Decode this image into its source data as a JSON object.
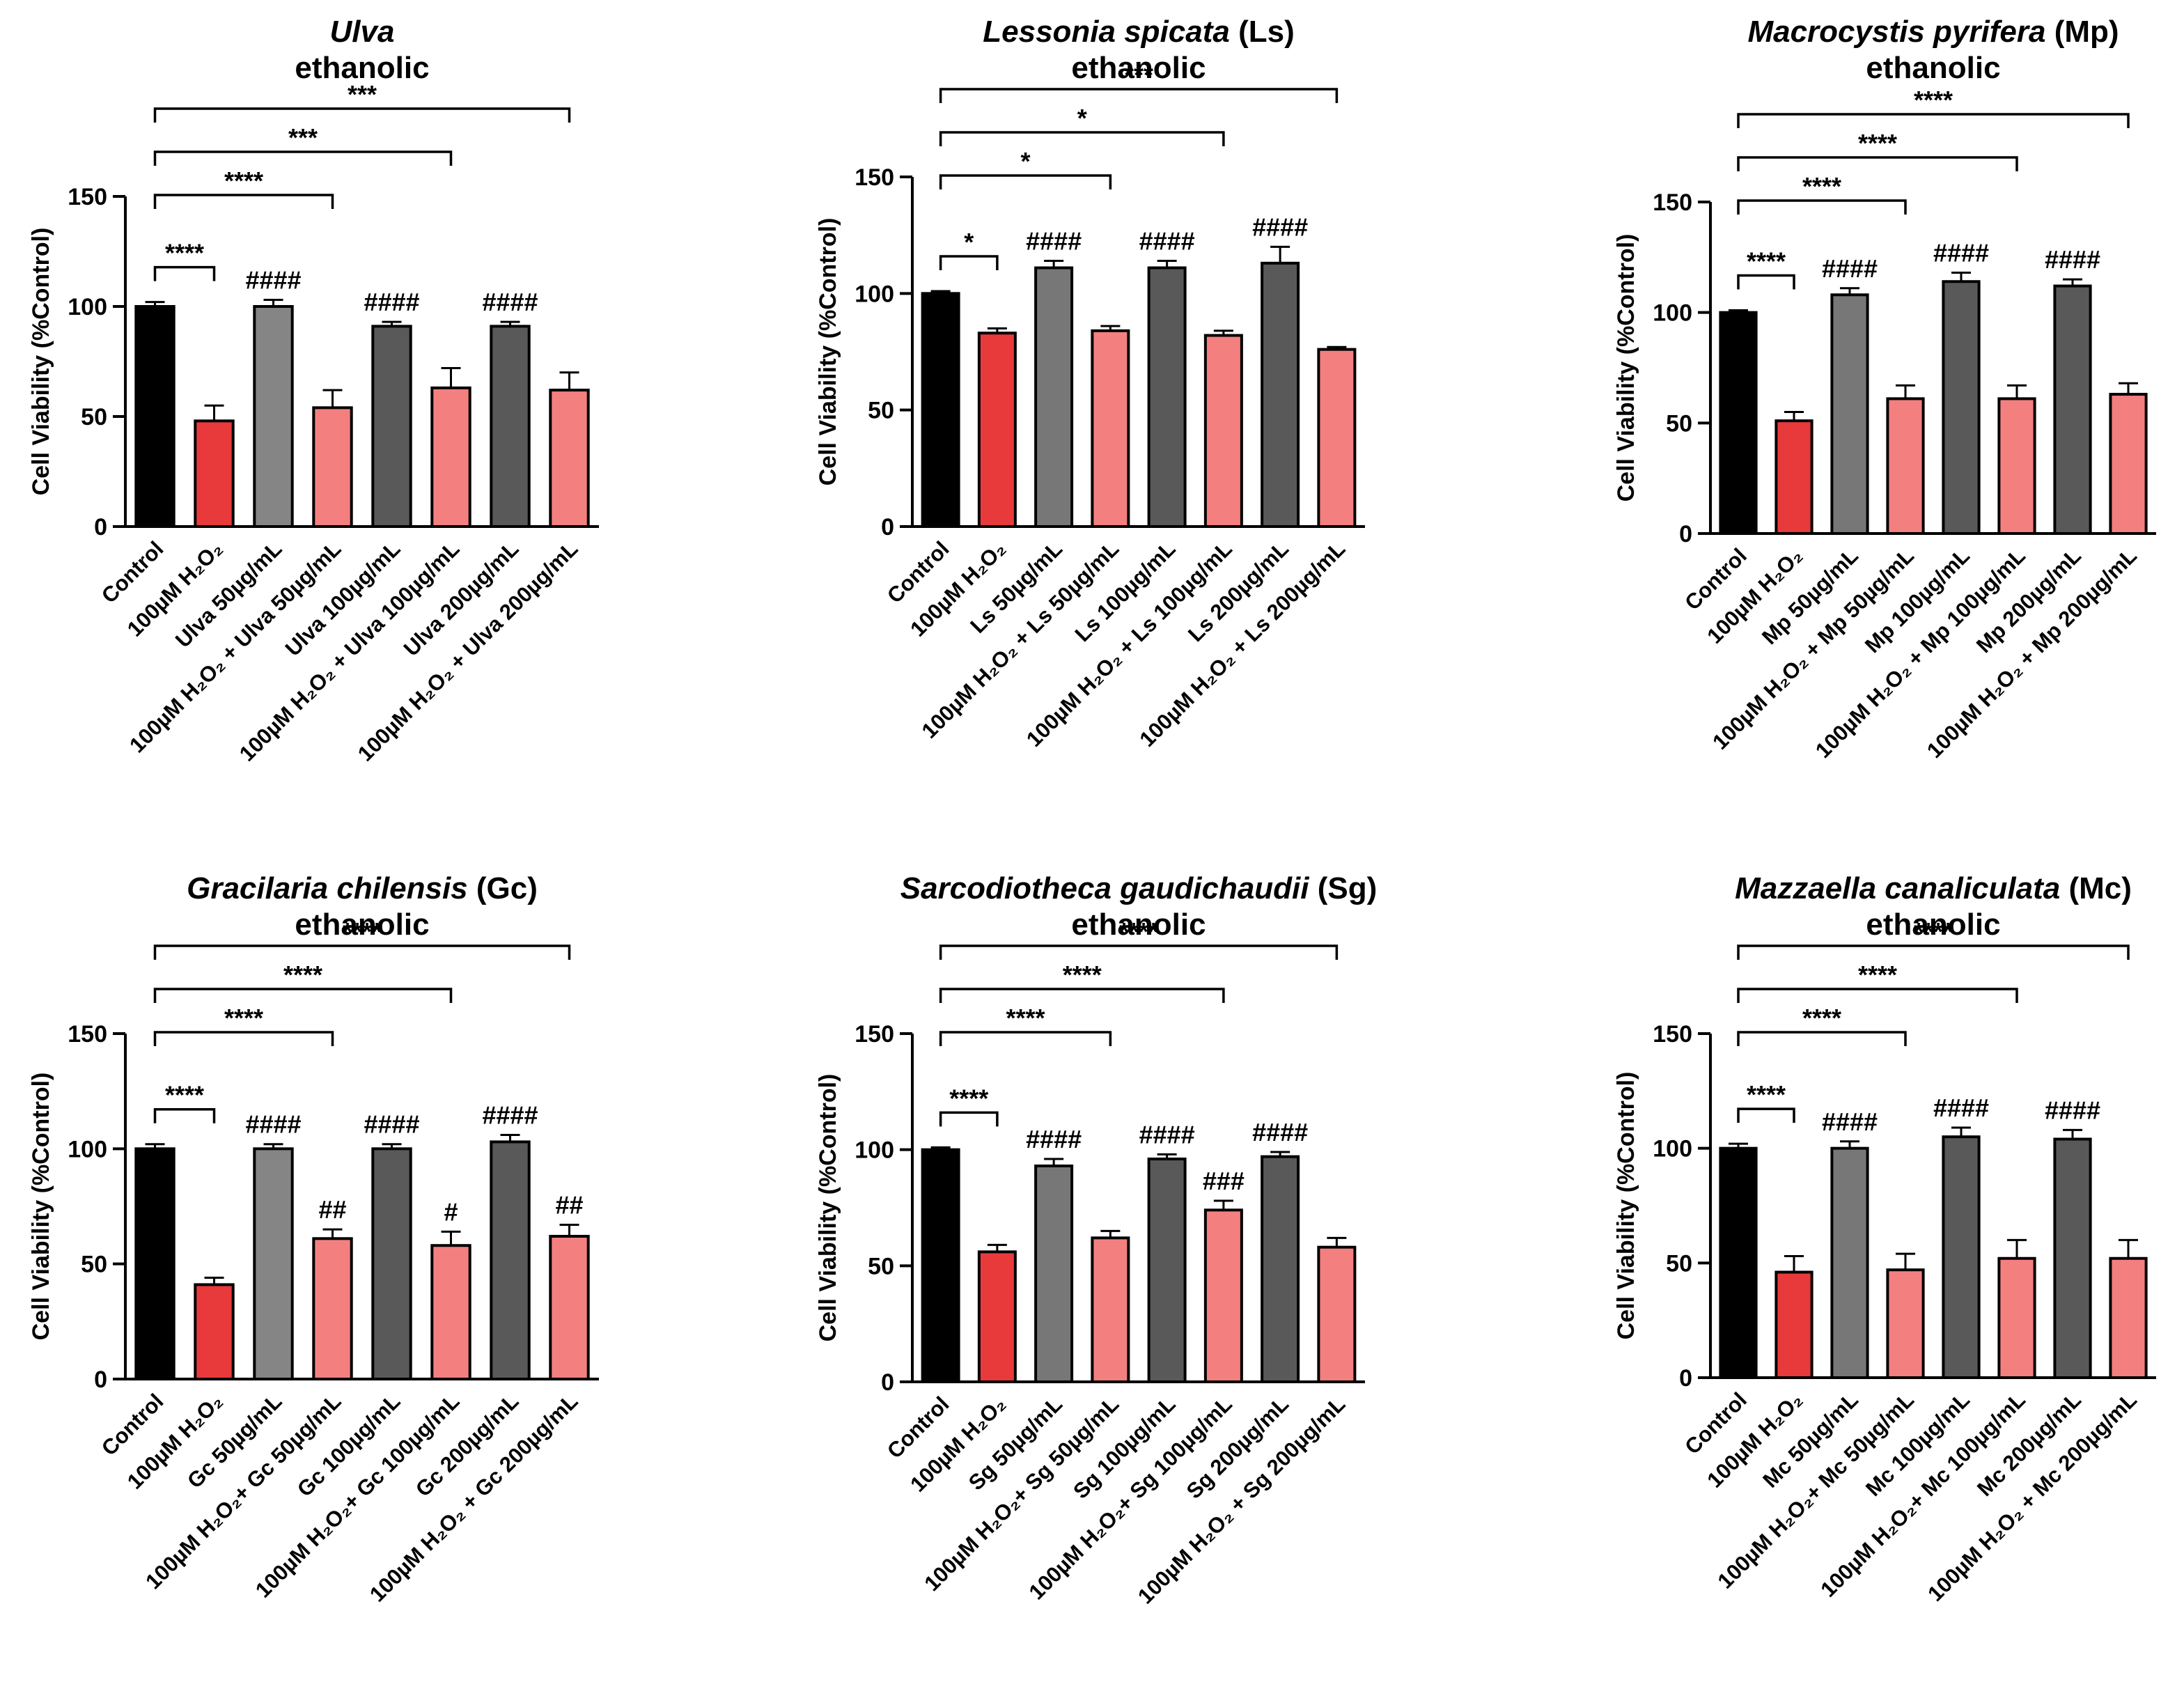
{
  "chart_data": [
    {
      "type": "bar",
      "title_italic": "Ulva",
      "subtitle": "ethanolic",
      "ylabel": "Cell Viability (%Control)",
      "categories": [
        "Control",
        "100µM H₂O₂",
        "Ulva 50µg/mL",
        "100µM H₂O₂ + Ulva 50µg/mL",
        "Ulva 100µg/mL",
        "100µM H₂O₂ + Ulva 100µg/mL",
        "Ulva 200µg/mL",
        "100µM H₂O₂ + Ulva 200µg/mL"
      ],
      "values": [
        100,
        48,
        100,
        54,
        91,
        63,
        91,
        62
      ],
      "errors": [
        2,
        7,
        3,
        8,
        2,
        9,
        2,
        8
      ],
      "colors": [
        "#000000",
        "#e8393b",
        "#858585",
        "#f47f7f",
        "#595959",
        "#f47f7f",
        "#595959",
        "#f47f7f"
      ],
      "bar_labels": [
        null,
        null,
        "####",
        null,
        "####",
        null,
        "####",
        null
      ],
      "brackets": [
        {
          "label": "****",
          "from": "Control",
          "to": "100µM H₂O₂"
        },
        {
          "label": "****",
          "from": "Control",
          "to": "100µM H₂O₂ + Ulva 50µg/mL"
        },
        {
          "label": "***",
          "from": "Control",
          "to": "100µM H₂O₂ + Ulva 100µg/mL"
        },
        {
          "label": "***",
          "from": "Control",
          "to": "100µM H₂O₂ + Ulva 200µg/mL"
        }
      ],
      "ylim": [
        0,
        150
      ],
      "yticks": [
        0,
        50,
        100,
        150
      ]
    },
    {
      "type": "bar",
      "title_italic": "Lessonia spicata",
      "title_plain": "(Ls)",
      "subtitle": "ethanolic",
      "ylabel": "Cell Viability (%Control)",
      "categories": [
        "Control",
        "100µM H₂O₂",
        "Ls 50µg/mL",
        "100µM H₂O₂ + Ls 50µg/mL",
        "Ls 100µg/mL",
        "100µM H₂O₂ + Ls 100µg/mL",
        "Ls 200µg/mL",
        "100µM H₂O₂ + Ls 200µg/mL"
      ],
      "values": [
        100,
        83,
        111,
        84,
        111,
        82,
        113,
        76
      ],
      "errors": [
        1,
        2,
        3,
        2,
        3,
        2,
        7,
        1
      ],
      "colors": [
        "#000000",
        "#e8393b",
        "#777777",
        "#f47f7f",
        "#595959",
        "#f47f7f",
        "#595959",
        "#f47f7f"
      ],
      "bar_labels": [
        null,
        null,
        "####",
        null,
        "####",
        null,
        "####",
        null
      ],
      "brackets": [
        {
          "label": "*",
          "from": "Control",
          "to": "100µM H₂O₂"
        },
        {
          "label": "*",
          "from": "Control",
          "to": "100µM H₂O₂ + Ls 50µg/mL"
        },
        {
          "label": "*",
          "from": "Control",
          "to": "100µM H₂O₂ + Ls 100µg/mL"
        },
        {
          "label": "***",
          "from": "Control",
          "to": "100µM H₂O₂ + Ls 200µg/mL"
        }
      ],
      "ylim": [
        0,
        150
      ],
      "yticks": [
        0,
        50,
        100,
        150
      ]
    },
    {
      "type": "bar",
      "title_italic": "Macrocystis pyrifera",
      "title_plain": "(Mp)",
      "subtitle": "ethanolic",
      "ylabel": "Cell Viability (%Control)",
      "categories": [
        "Control",
        "100µM H₂O₂",
        "Mp 50µg/mL",
        "100µM H₂O₂ + Mp 50µg/mL",
        "Mp 100µg/mL",
        "100µM H₂O₂ + Mp 100µg/mL",
        "Mp 200µg/mL",
        "100µM H₂O₂ + Mp 200µg/mL"
      ],
      "values": [
        100,
        51,
        108,
        61,
        114,
        61,
        112,
        63
      ],
      "errors": [
        1,
        4,
        3,
        6,
        4,
        6,
        3,
        5
      ],
      "colors": [
        "#000000",
        "#e8393b",
        "#777777",
        "#f47f7f",
        "#595959",
        "#f47f7f",
        "#595959",
        "#f47f7f"
      ],
      "bar_labels": [
        null,
        null,
        "####",
        null,
        "####",
        null,
        "####",
        null
      ],
      "brackets": [
        {
          "label": "****",
          "from": "Control",
          "to": "100µM H₂O₂"
        },
        {
          "label": "****",
          "from": "Control",
          "to": "100µM H₂O₂ + Mp 50µg/mL"
        },
        {
          "label": "****",
          "from": "Control",
          "to": "100µM H₂O₂ + Mp 100µg/mL"
        },
        {
          "label": "****",
          "from": "Control",
          "to": "100µM H₂O₂ + Mp 200µg/mL"
        }
      ],
      "ylim": [
        0,
        150
      ],
      "yticks": [
        0,
        50,
        100,
        150
      ]
    },
    {
      "type": "bar",
      "title_italic": "Gracilaria chilensis",
      "title_plain": "(Gc)",
      "subtitle": "ethanolic",
      "ylabel": "Cell Viability (%Control)",
      "categories": [
        "Control",
        "100µM H₂O₂",
        "Gc 50µg/mL",
        "100µM H₂O₂+ Gc 50µg/mL",
        "Gc 100µg/mL",
        "100µM H₂O₂+ Gc 100µg/mL",
        "Gc 200µg/mL",
        "100µM H₂O₂ + Gc 200µg/mL"
      ],
      "values": [
        100,
        41,
        100,
        61,
        100,
        58,
        103,
        62
      ],
      "errors": [
        2,
        3,
        2,
        4,
        2,
        6,
        3,
        5
      ],
      "colors": [
        "#000000",
        "#e8393b",
        "#858585",
        "#f47f7f",
        "#595959",
        "#f47f7f",
        "#595959",
        "#f47f7f"
      ],
      "bar_labels": [
        null,
        null,
        "####",
        "##",
        "####",
        "#",
        "####",
        "##"
      ],
      "brackets": [
        {
          "label": "****",
          "from": "Control",
          "to": "100µM H₂O₂"
        },
        {
          "label": "****",
          "from": "Control",
          "to": "100µM H₂O₂+ Gc 50µg/mL"
        },
        {
          "label": "****",
          "from": "Control",
          "to": "100µM H₂O₂+ Gc 100µg/mL"
        },
        {
          "label": "****",
          "from": "Control",
          "to": "100µM H₂O₂ + Gc 200µg/mL"
        }
      ],
      "ylim": [
        0,
        150
      ],
      "yticks": [
        0,
        50,
        100,
        150
      ]
    },
    {
      "type": "bar",
      "title_italic": "Sarcodiotheca gaudichaudii",
      "title_plain": "(Sg)",
      "subtitle": "ethanolic",
      "ylabel": "Cell Viability (%Control)",
      "categories": [
        "Control",
        "100µM H₂O₂",
        "Sg 50µg/mL",
        "100µM H₂O₂+ Sg 50µg/mL",
        "Sg 100µg/mL",
        "100µM H₂O₂+ Sg 100µg/mL",
        "Sg 200µg/mL",
        "100µM H₂O₂ + Sg 200µg/mL"
      ],
      "values": [
        100,
        56,
        93,
        62,
        96,
        74,
        97,
        58
      ],
      "errors": [
        1,
        3,
        3,
        3,
        2,
        4,
        2,
        4
      ],
      "colors": [
        "#000000",
        "#e8393b",
        "#777777",
        "#f47f7f",
        "#595959",
        "#f47f7f",
        "#595959",
        "#f47f7f"
      ],
      "bar_labels": [
        null,
        null,
        "####",
        null,
        "####",
        "###",
        "####",
        null
      ],
      "brackets": [
        {
          "label": "****",
          "from": "Control",
          "to": "100µM H₂O₂"
        },
        {
          "label": "****",
          "from": "Control",
          "to": "100µM H₂O₂+ Sg 50µg/mL"
        },
        {
          "label": "****",
          "from": "Control",
          "to": "100µM H₂O₂+ Sg 100µg/mL"
        },
        {
          "label": "****",
          "from": "Control",
          "to": "100µM H₂O₂ + Sg 200µg/mL"
        }
      ],
      "ylim": [
        0,
        150
      ],
      "yticks": [
        0,
        50,
        100,
        150
      ]
    },
    {
      "type": "bar",
      "title_italic": "Mazzaella canaliculata",
      "title_plain": "(Mc)",
      "subtitle": "ethanolic",
      "ylabel": "Cell Viability (%Control)",
      "categories": [
        "Control",
        "100µM H₂O₂",
        "Mc 50µg/mL",
        "100µM H₂O₂+ Mc 50µg/mL",
        "Mc 100µg/mL",
        "100µM H₂O₂+ Mc 100µg/mL",
        "Mc 200µg/mL",
        "100µM H₂O₂ + Mc 200µg/mL"
      ],
      "values": [
        100,
        46,
        100,
        47,
        105,
        52,
        104,
        52
      ],
      "errors": [
        2,
        7,
        3,
        7,
        4,
        8,
        4,
        8
      ],
      "colors": [
        "#000000",
        "#e8393b",
        "#777777",
        "#f47f7f",
        "#595959",
        "#f47f7f",
        "#595959",
        "#f47f7f"
      ],
      "bar_labels": [
        null,
        null,
        "####",
        null,
        "####",
        null,
        "####",
        null
      ],
      "brackets": [
        {
          "label": "****",
          "from": "Control",
          "to": "100µM H₂O₂"
        },
        {
          "label": "****",
          "from": "Control",
          "to": "100µM H₂O₂+ Mc 50µg/mL"
        },
        {
          "label": "****",
          "from": "Control",
          "to": "100µM H₂O₂+ Mc 100µg/mL"
        },
        {
          "label": "****",
          "from": "Control",
          "to": "100µM H₂O₂ + Mc 200µg/mL"
        }
      ],
      "ylim": [
        0,
        150
      ],
      "yticks": [
        0,
        50,
        100,
        150
      ]
    }
  ]
}
